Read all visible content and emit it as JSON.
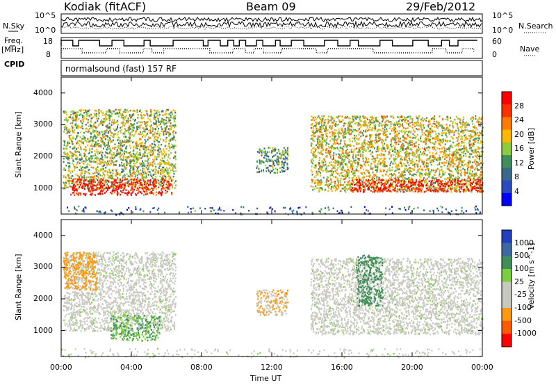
{
  "header": {
    "station": "Kodiak (fitACF)",
    "beam": "Beam 09",
    "date": "29/Feb/2012"
  },
  "left_labels": {
    "nsky": "N.Sky",
    "freq": "Freq.",
    "freq_unit": "[MHz]",
    "cpid": "CPID"
  },
  "right_labels": {
    "nsearch": "N.Search",
    "nave": "Nave"
  },
  "noise_panel": {
    "left_ticks": [
      "10^5",
      "10^0"
    ],
    "right_ticks": [
      "10^5",
      "10^0"
    ]
  },
  "freq_panel": {
    "left_ticks": [
      "18",
      "8"
    ],
    "right_ticks": [
      "60",
      "0"
    ]
  },
  "cpid_text": "normalsound (fast) 157 RF",
  "colors": {
    "power": [
      "#0000ff",
      "#2a4bbf",
      "#3a6a8a",
      "#3f8f5a",
      "#8ccc3c",
      "#ffb800",
      "#ff7a00",
      "#ff3000",
      "#ff0000"
    ],
    "velocity": [
      "#ff0000",
      "#ff5a00",
      "#ff9a10",
      "#c8c8c0",
      "#c8c8c0",
      "#7ad040",
      "#3f8f5a",
      "#3a6aa0",
      "#2040c0"
    ]
  },
  "chart_data": [
    {
      "type": "heatmap",
      "title": "",
      "quantity": "Power",
      "colorbar_label": "Power [dB]",
      "colorbar_ticks": [
        "28",
        "24",
        "20",
        "16",
        "12",
        "8",
        "4"
      ],
      "ylabel": "Slant Range [km]",
      "y_ticks": [
        "4000",
        "3000",
        "2000",
        "1000"
      ],
      "ylim": [
        180,
        4500
      ],
      "x_ticks": [
        "00:00",
        "04:00",
        "08:00",
        "12:00",
        "16:00",
        "20:00",
        "00:00"
      ],
      "xlim_hours": [
        0,
        24
      ],
      "regions": [
        {
          "x": [
            0.1,
            6.5
          ],
          "y": [
            1000,
            3500
          ],
          "value_db": 14
        },
        {
          "x": [
            0.5,
            6.3
          ],
          "y": [
            800,
            1300
          ],
          "value_db": 28
        },
        {
          "x": [
            11.1,
            12.9
          ],
          "y": [
            1500,
            2300
          ],
          "value_db": 10
        },
        {
          "x": [
            14.2,
            24.0
          ],
          "y": [
            900,
            3300
          ],
          "value_db": 16
        },
        {
          "x": [
            16.5,
            24.0
          ],
          "y": [
            900,
            1300
          ],
          "value_db": 28
        },
        {
          "x": [
            0,
            24
          ],
          "y": [
            180,
            450
          ],
          "value_db": 6
        }
      ]
    },
    {
      "type": "heatmap",
      "title": "",
      "quantity": "Velocity",
      "colorbar_label": "Velocity [m s^-1]",
      "colorbar_ticks": [
        "1000",
        "500",
        "100",
        "25",
        "-25",
        "-100",
        "-500",
        "-1000"
      ],
      "ylabel": "Slant Range [km]",
      "y_ticks": [
        "4000",
        "3000",
        "2000",
        "1000"
      ],
      "ylim": [
        180,
        4500
      ],
      "x_ticks": [
        "00:00",
        "04:00",
        "08:00",
        "12:00",
        "16:00",
        "20:00",
        "00:00"
      ],
      "xlim_hours": [
        0,
        24
      ],
      "xlabel": "Time UT",
      "regions": [
        {
          "x": [
            0.1,
            6.5
          ],
          "y": [
            1000,
            3500
          ],
          "value_ms": 0
        },
        {
          "x": [
            2.8,
            5.6
          ],
          "y": [
            700,
            1500
          ],
          "value_ms": 100
        },
        {
          "x": [
            0.1,
            2.0
          ],
          "y": [
            2300,
            3500
          ],
          "value_ms": -300
        },
        {
          "x": [
            11.1,
            12.9
          ],
          "y": [
            1500,
            2300
          ],
          "value_ms": -100
        },
        {
          "x": [
            14.2,
            24.0
          ],
          "y": [
            900,
            3300
          ],
          "value_ms": 0
        },
        {
          "x": [
            16.8,
            18.3
          ],
          "y": [
            1800,
            3400
          ],
          "value_ms": 150
        },
        {
          "x": [
            0,
            24
          ],
          "y": [
            180,
            450
          ],
          "value_ms": 0
        }
      ]
    }
  ]
}
